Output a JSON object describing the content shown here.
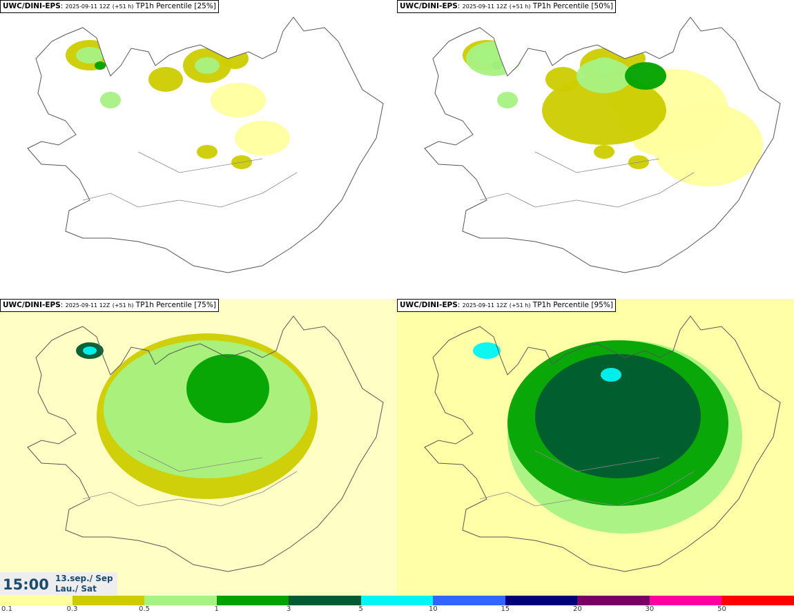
{
  "panels": [
    {
      "model": "UWC/DINI-EPS",
      "run": "2025-09-11 12Z",
      "lead": "(+51 h)",
      "label": "TP1h Percentile [25%]",
      "level": 1
    },
    {
      "model": "UWC/DINI-EPS",
      "run": "2025-09-11 12Z",
      "lead": "(+51 h)",
      "label": "TP1h Percentile [50%]",
      "level": 2
    },
    {
      "model": "UWC/DINI-EPS",
      "run": "2025-09-11 12Z",
      "lead": "(+51 h)",
      "label": "TP1h Percentile [75%]",
      "level": 3
    },
    {
      "model": "UWC/DINI-EPS",
      "run": "2025-09-11 12Z",
      "lead": "(+51 h)",
      "label": "TP1h Percentile [95%]",
      "level": 4
    }
  ],
  "valid_time": {
    "time": "15:00",
    "date_line1": "13.sep./ Sep",
    "date_line2": "Lau./ Sat"
  },
  "legend": {
    "ticks": [
      "0.1",
      "0.3",
      "0.5",
      "1",
      "3",
      "5",
      "10",
      "15",
      "20",
      "30",
      "50"
    ],
    "colors": [
      "#ffff9f",
      "#cccc00",
      "#a6f283",
      "#00a200",
      "#005a32",
      "#00f5f5",
      "#3264ff",
      "#000078",
      "#780064",
      "#ff00a0",
      "#ff0000"
    ]
  }
}
